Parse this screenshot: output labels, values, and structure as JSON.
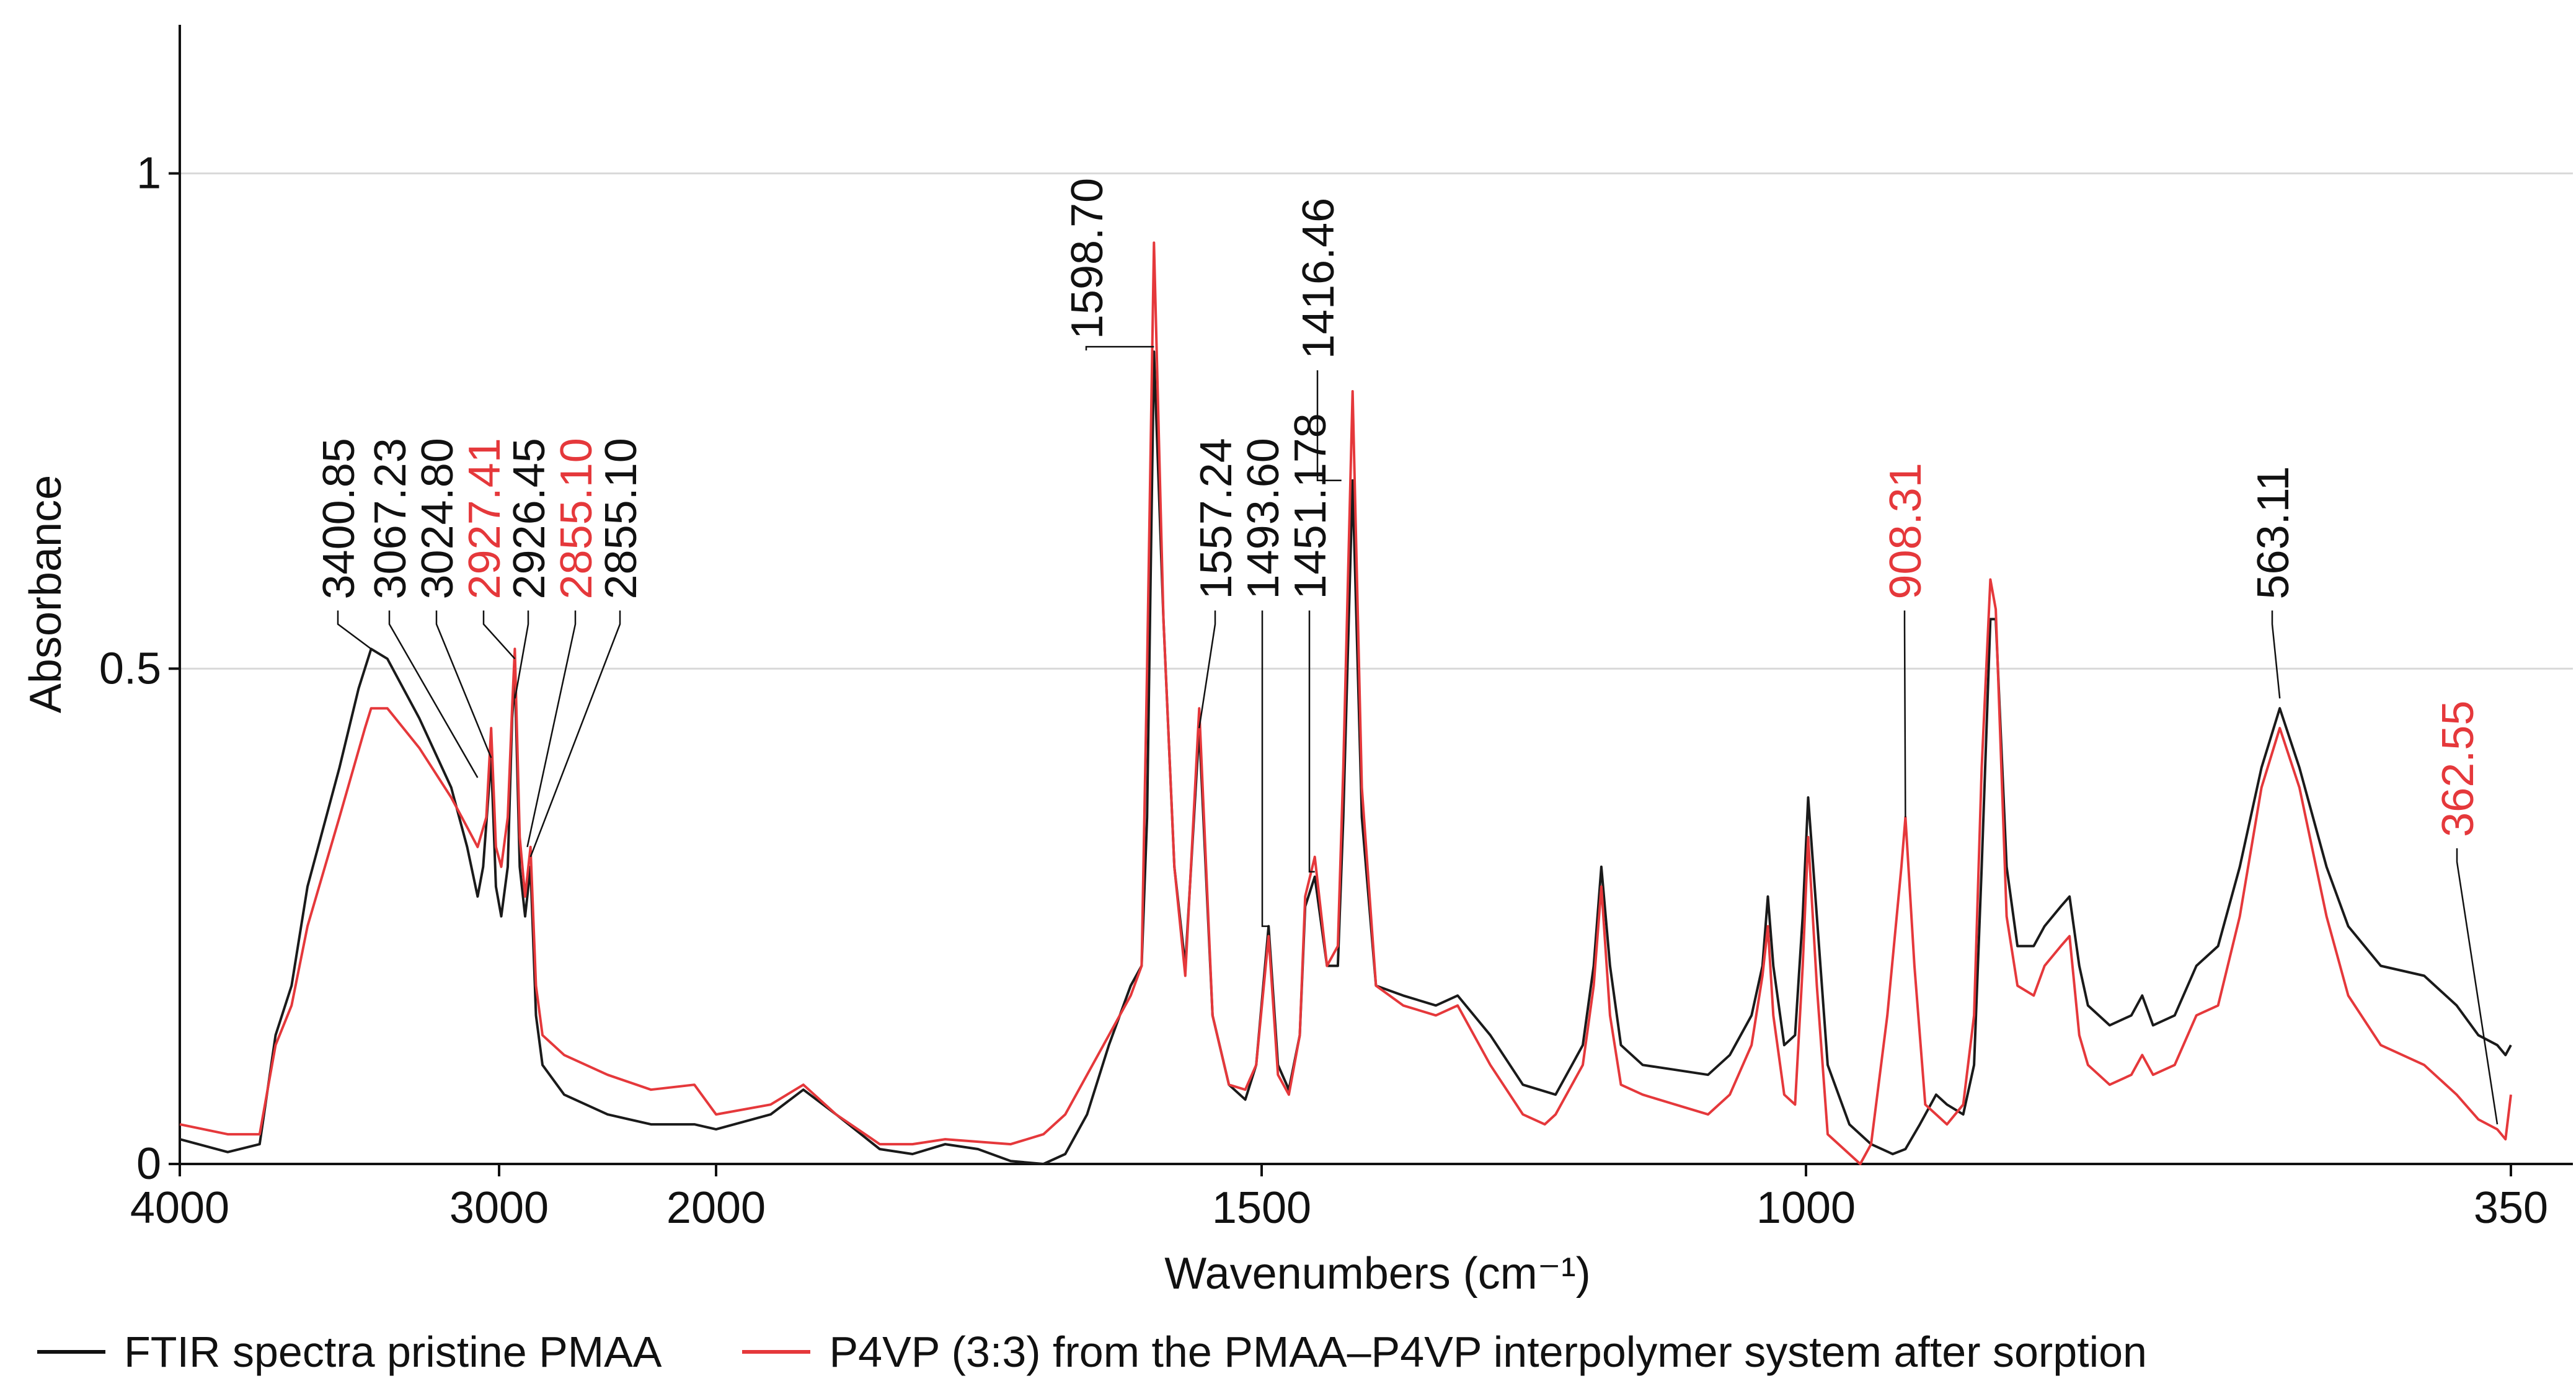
{
  "chart_data": {
    "type": "line",
    "xlabel": "Wavenumbers (cm⁻¹)",
    "ylabel": "Absorbance",
    "xticks": [
      4000,
      3000,
      2000,
      1500,
      1000,
      350
    ],
    "yticks": [
      0,
      0.5,
      1
    ],
    "yticklabels": [
      "0",
      "0.5",
      "1"
    ],
    "ylim": [
      0,
      1.15
    ],
    "colors": {
      "pmaa": "#1a1a1a",
      "p4vp": "#e5383b",
      "grid": "#d9d9d9"
    },
    "series": [
      {
        "name": "FTIR spectra pristine PMAA",
        "color": "#1a1a1a",
        "points": [
          [
            4000,
            0.025
          ],
          [
            3850,
            0.012
          ],
          [
            3750,
            0.02
          ],
          [
            3700,
            0.13
          ],
          [
            3650,
            0.18
          ],
          [
            3600,
            0.28
          ],
          [
            3500,
            0.4
          ],
          [
            3440,
            0.48
          ],
          [
            3400.85,
            0.52
          ],
          [
            3350,
            0.51
          ],
          [
            3250,
            0.45
          ],
          [
            3150,
            0.38
          ],
          [
            3100,
            0.32
          ],
          [
            3067.23,
            0.27
          ],
          [
            3050,
            0.3
          ],
          [
            3024.8,
            0.41
          ],
          [
            3010,
            0.28
          ],
          [
            2990,
            0.25
          ],
          [
            2960,
            0.3
          ],
          [
            2940,
            0.45
          ],
          [
            2926.45,
            0.49
          ],
          [
            2905,
            0.3
          ],
          [
            2880,
            0.25
          ],
          [
            2855.1,
            0.3
          ],
          [
            2830,
            0.15
          ],
          [
            2800,
            0.1
          ],
          [
            2700,
            0.07
          ],
          [
            2500,
            0.05
          ],
          [
            2300,
            0.04
          ],
          [
            2100,
            0.04
          ],
          [
            2000,
            0.035
          ],
          [
            1950,
            0.05
          ],
          [
            1920,
            0.075
          ],
          [
            1890,
            0.05
          ],
          [
            1850,
            0.015
          ],
          [
            1820,
            0.01
          ],
          [
            1790,
            0.02
          ],
          [
            1760,
            0.015
          ],
          [
            1730,
            0.003
          ],
          [
            1700,
            0.0
          ],
          [
            1680,
            0.01
          ],
          [
            1660,
            0.05
          ],
          [
            1640,
            0.12
          ],
          [
            1620,
            0.18
          ],
          [
            1610,
            0.2
          ],
          [
            1605,
            0.35
          ],
          [
            1598.7,
            0.82
          ],
          [
            1590,
            0.55
          ],
          [
            1580,
            0.3
          ],
          [
            1570,
            0.2
          ],
          [
            1557.24,
            0.44
          ],
          [
            1545,
            0.15
          ],
          [
            1530,
            0.08
          ],
          [
            1515,
            0.065
          ],
          [
            1505,
            0.1
          ],
          [
            1493.6,
            0.24
          ],
          [
            1485,
            0.1
          ],
          [
            1475,
            0.075
          ],
          [
            1465,
            0.13
          ],
          [
            1460,
            0.26
          ],
          [
            1451.178,
            0.29
          ],
          [
            1440,
            0.2
          ],
          [
            1430,
            0.2
          ],
          [
            1425,
            0.35
          ],
          [
            1416.46,
            0.69
          ],
          [
            1408,
            0.35
          ],
          [
            1395,
            0.18
          ],
          [
            1370,
            0.17
          ],
          [
            1340,
            0.16
          ],
          [
            1320,
            0.17
          ],
          [
            1290,
            0.13
          ],
          [
            1260,
            0.08
          ],
          [
            1230,
            0.07
          ],
          [
            1215,
            0.1
          ],
          [
            1205,
            0.12
          ],
          [
            1195,
            0.2
          ],
          [
            1188,
            0.3
          ],
          [
            1180,
            0.2
          ],
          [
            1170,
            0.12
          ],
          [
            1150,
            0.1
          ],
          [
            1120,
            0.095
          ],
          [
            1090,
            0.09
          ],
          [
            1070,
            0.11
          ],
          [
            1050,
            0.15
          ],
          [
            1040,
            0.2
          ],
          [
            1035,
            0.27
          ],
          [
            1030,
            0.2
          ],
          [
            1020,
            0.12
          ],
          [
            1010,
            0.13
          ],
          [
            1003,
            0.25
          ],
          [
            998,
            0.37
          ],
          [
            990,
            0.25
          ],
          [
            980,
            0.1
          ],
          [
            960,
            0.04
          ],
          [
            940,
            0.02
          ],
          [
            920,
            0.01
          ],
          [
            908.31,
            0.015
          ],
          [
            895,
            0.04
          ],
          [
            880,
            0.07
          ],
          [
            870,
            0.06
          ],
          [
            855,
            0.05
          ],
          [
            845,
            0.1
          ],
          [
            838,
            0.3
          ],
          [
            830,
            0.55
          ],
          [
            825,
            0.55
          ],
          [
            815,
            0.3
          ],
          [
            805,
            0.22
          ],
          [
            790,
            0.22
          ],
          [
            780,
            0.24
          ],
          [
            765,
            0.26
          ],
          [
            757,
            0.27
          ],
          [
            748,
            0.2
          ],
          [
            740,
            0.16
          ],
          [
            720,
            0.14
          ],
          [
            700,
            0.15
          ],
          [
            690,
            0.17
          ],
          [
            680,
            0.14
          ],
          [
            660,
            0.15
          ],
          [
            640,
            0.2
          ],
          [
            620,
            0.22
          ],
          [
            600,
            0.3
          ],
          [
            580,
            0.4
          ],
          [
            563.11,
            0.46
          ],
          [
            545,
            0.4
          ],
          [
            520,
            0.3
          ],
          [
            500,
            0.24
          ],
          [
            470,
            0.2
          ],
          [
            430,
            0.19
          ],
          [
            400,
            0.16
          ],
          [
            380,
            0.13
          ],
          [
            362.55,
            0.12
          ],
          [
            355,
            0.11
          ],
          [
            350,
            0.12
          ]
        ]
      },
      {
        "name": "P4VP (3:3) from the PMAA–P4VP interpolymer system after sorption",
        "color": "#e5383b",
        "points": [
          [
            4000,
            0.04
          ],
          [
            3850,
            0.03
          ],
          [
            3750,
            0.03
          ],
          [
            3700,
            0.12
          ],
          [
            3650,
            0.16
          ],
          [
            3600,
            0.24
          ],
          [
            3500,
            0.35
          ],
          [
            3420,
            0.44
          ],
          [
            3400.85,
            0.46
          ],
          [
            3350,
            0.46
          ],
          [
            3250,
            0.42
          ],
          [
            3150,
            0.37
          ],
          [
            3100,
            0.34
          ],
          [
            3067.23,
            0.32
          ],
          [
            3040,
            0.35
          ],
          [
            3024.8,
            0.44
          ],
          [
            3010,
            0.32
          ],
          [
            2990,
            0.3
          ],
          [
            2960,
            0.35
          ],
          [
            2940,
            0.46
          ],
          [
            2927.41,
            0.52
          ],
          [
            2905,
            0.33
          ],
          [
            2880,
            0.27
          ],
          [
            2855.1,
            0.32
          ],
          [
            2830,
            0.18
          ],
          [
            2800,
            0.13
          ],
          [
            2700,
            0.11
          ],
          [
            2500,
            0.09
          ],
          [
            2300,
            0.075
          ],
          [
            2100,
            0.08
          ],
          [
            2000,
            0.05
          ],
          [
            1950,
            0.06
          ],
          [
            1920,
            0.08
          ],
          [
            1890,
            0.05
          ],
          [
            1850,
            0.02
          ],
          [
            1820,
            0.02
          ],
          [
            1790,
            0.025
          ],
          [
            1730,
            0.02
          ],
          [
            1700,
            0.03
          ],
          [
            1680,
            0.05
          ],
          [
            1660,
            0.09
          ],
          [
            1640,
            0.13
          ],
          [
            1620,
            0.17
          ],
          [
            1610,
            0.2
          ],
          [
            1605,
            0.5
          ],
          [
            1598.7,
            0.93
          ],
          [
            1590,
            0.55
          ],
          [
            1580,
            0.3
          ],
          [
            1570,
            0.19
          ],
          [
            1557.24,
            0.46
          ],
          [
            1545,
            0.15
          ],
          [
            1530,
            0.08
          ],
          [
            1515,
            0.075
          ],
          [
            1505,
            0.1
          ],
          [
            1493.6,
            0.23
          ],
          [
            1485,
            0.09
          ],
          [
            1475,
            0.07
          ],
          [
            1465,
            0.13
          ],
          [
            1460,
            0.27
          ],
          [
            1451.178,
            0.31
          ],
          [
            1440,
            0.2
          ],
          [
            1430,
            0.22
          ],
          [
            1425,
            0.4
          ],
          [
            1416.46,
            0.78
          ],
          [
            1408,
            0.38
          ],
          [
            1395,
            0.18
          ],
          [
            1370,
            0.16
          ],
          [
            1340,
            0.15
          ],
          [
            1320,
            0.16
          ],
          [
            1290,
            0.1
          ],
          [
            1260,
            0.05
          ],
          [
            1240,
            0.04
          ],
          [
            1230,
            0.05
          ],
          [
            1215,
            0.08
          ],
          [
            1205,
            0.1
          ],
          [
            1195,
            0.18
          ],
          [
            1188,
            0.28
          ],
          [
            1180,
            0.15
          ],
          [
            1170,
            0.08
          ],
          [
            1150,
            0.07
          ],
          [
            1120,
            0.06
          ],
          [
            1090,
            0.05
          ],
          [
            1070,
            0.07
          ],
          [
            1050,
            0.12
          ],
          [
            1040,
            0.19
          ],
          [
            1035,
            0.24
          ],
          [
            1030,
            0.15
          ],
          [
            1020,
            0.07
          ],
          [
            1010,
            0.06
          ],
          [
            1003,
            0.2
          ],
          [
            998,
            0.33
          ],
          [
            990,
            0.18
          ],
          [
            980,
            0.03
          ],
          [
            960,
            0.01
          ],
          [
            950,
            0.0
          ],
          [
            940,
            0.02
          ],
          [
            925,
            0.15
          ],
          [
            912,
            0.3
          ],
          [
            908.31,
            0.35
          ],
          [
            900,
            0.2
          ],
          [
            890,
            0.06
          ],
          [
            880,
            0.05
          ],
          [
            870,
            0.04
          ],
          [
            855,
            0.06
          ],
          [
            845,
            0.15
          ],
          [
            838,
            0.4
          ],
          [
            830,
            0.59
          ],
          [
            825,
            0.56
          ],
          [
            815,
            0.25
          ],
          [
            805,
            0.18
          ],
          [
            790,
            0.17
          ],
          [
            780,
            0.2
          ],
          [
            765,
            0.22
          ],
          [
            757,
            0.23
          ],
          [
            748,
            0.13
          ],
          [
            740,
            0.1
          ],
          [
            720,
            0.08
          ],
          [
            700,
            0.09
          ],
          [
            690,
            0.11
          ],
          [
            680,
            0.09
          ],
          [
            660,
            0.1
          ],
          [
            640,
            0.15
          ],
          [
            620,
            0.16
          ],
          [
            600,
            0.25
          ],
          [
            580,
            0.38
          ],
          [
            563.11,
            0.44
          ],
          [
            545,
            0.38
          ],
          [
            520,
            0.25
          ],
          [
            500,
            0.17
          ],
          [
            470,
            0.12
          ],
          [
            430,
            0.1
          ],
          [
            400,
            0.07
          ],
          [
            380,
            0.045
          ],
          [
            362.55,
            0.035
          ],
          [
            355,
            0.025
          ],
          [
            350,
            0.07
          ]
        ]
      }
    ],
    "annotations": [
      {
        "label": "3400.85",
        "x": 3400.85,
        "y": 0.52,
        "color": "#111111"
      },
      {
        "label": "3067.23",
        "x": 3067.23,
        "y": 0.39,
        "color": "#111111"
      },
      {
        "label": "3024.80",
        "x": 3024.8,
        "y": 0.41,
        "color": "#111111"
      },
      {
        "label": "2927.41",
        "x": 2927.41,
        "y": 0.51,
        "color": "#e5383b"
      },
      {
        "label": "2926.45",
        "x": 2926.45,
        "y": 0.47,
        "color": "#111111"
      },
      {
        "label": "2855.10",
        "x": 2870.0,
        "y": 0.32,
        "color": "#e5383b"
      },
      {
        "label": "2855.10",
        "x": 2855.1,
        "y": 0.31,
        "color": "#111111"
      },
      {
        "label": "1598.70",
        "x": 1598.7,
        "y": 0.825,
        "color": "#111111"
      },
      {
        "label": "1557.24",
        "x": 1557.24,
        "y": 0.44,
        "color": "#111111"
      },
      {
        "label": "1493.60",
        "x": 1493.6,
        "y": 0.24,
        "color": "#111111"
      },
      {
        "label": "1451.178",
        "x": 1451.178,
        "y": 0.295,
        "color": "#111111"
      },
      {
        "label": "1416.46",
        "x": 1416.46,
        "y": 0.69,
        "color": "#111111"
      },
      {
        "label": "908.31",
        "x": 908.31,
        "y": 0.35,
        "color": "#e5383b"
      },
      {
        "label": "563.11",
        "x": 563.11,
        "y": 0.47,
        "color": "#111111"
      },
      {
        "label": "362.55",
        "x": 362.55,
        "y": 0.04,
        "color": "#e5383b"
      }
    ]
  }
}
